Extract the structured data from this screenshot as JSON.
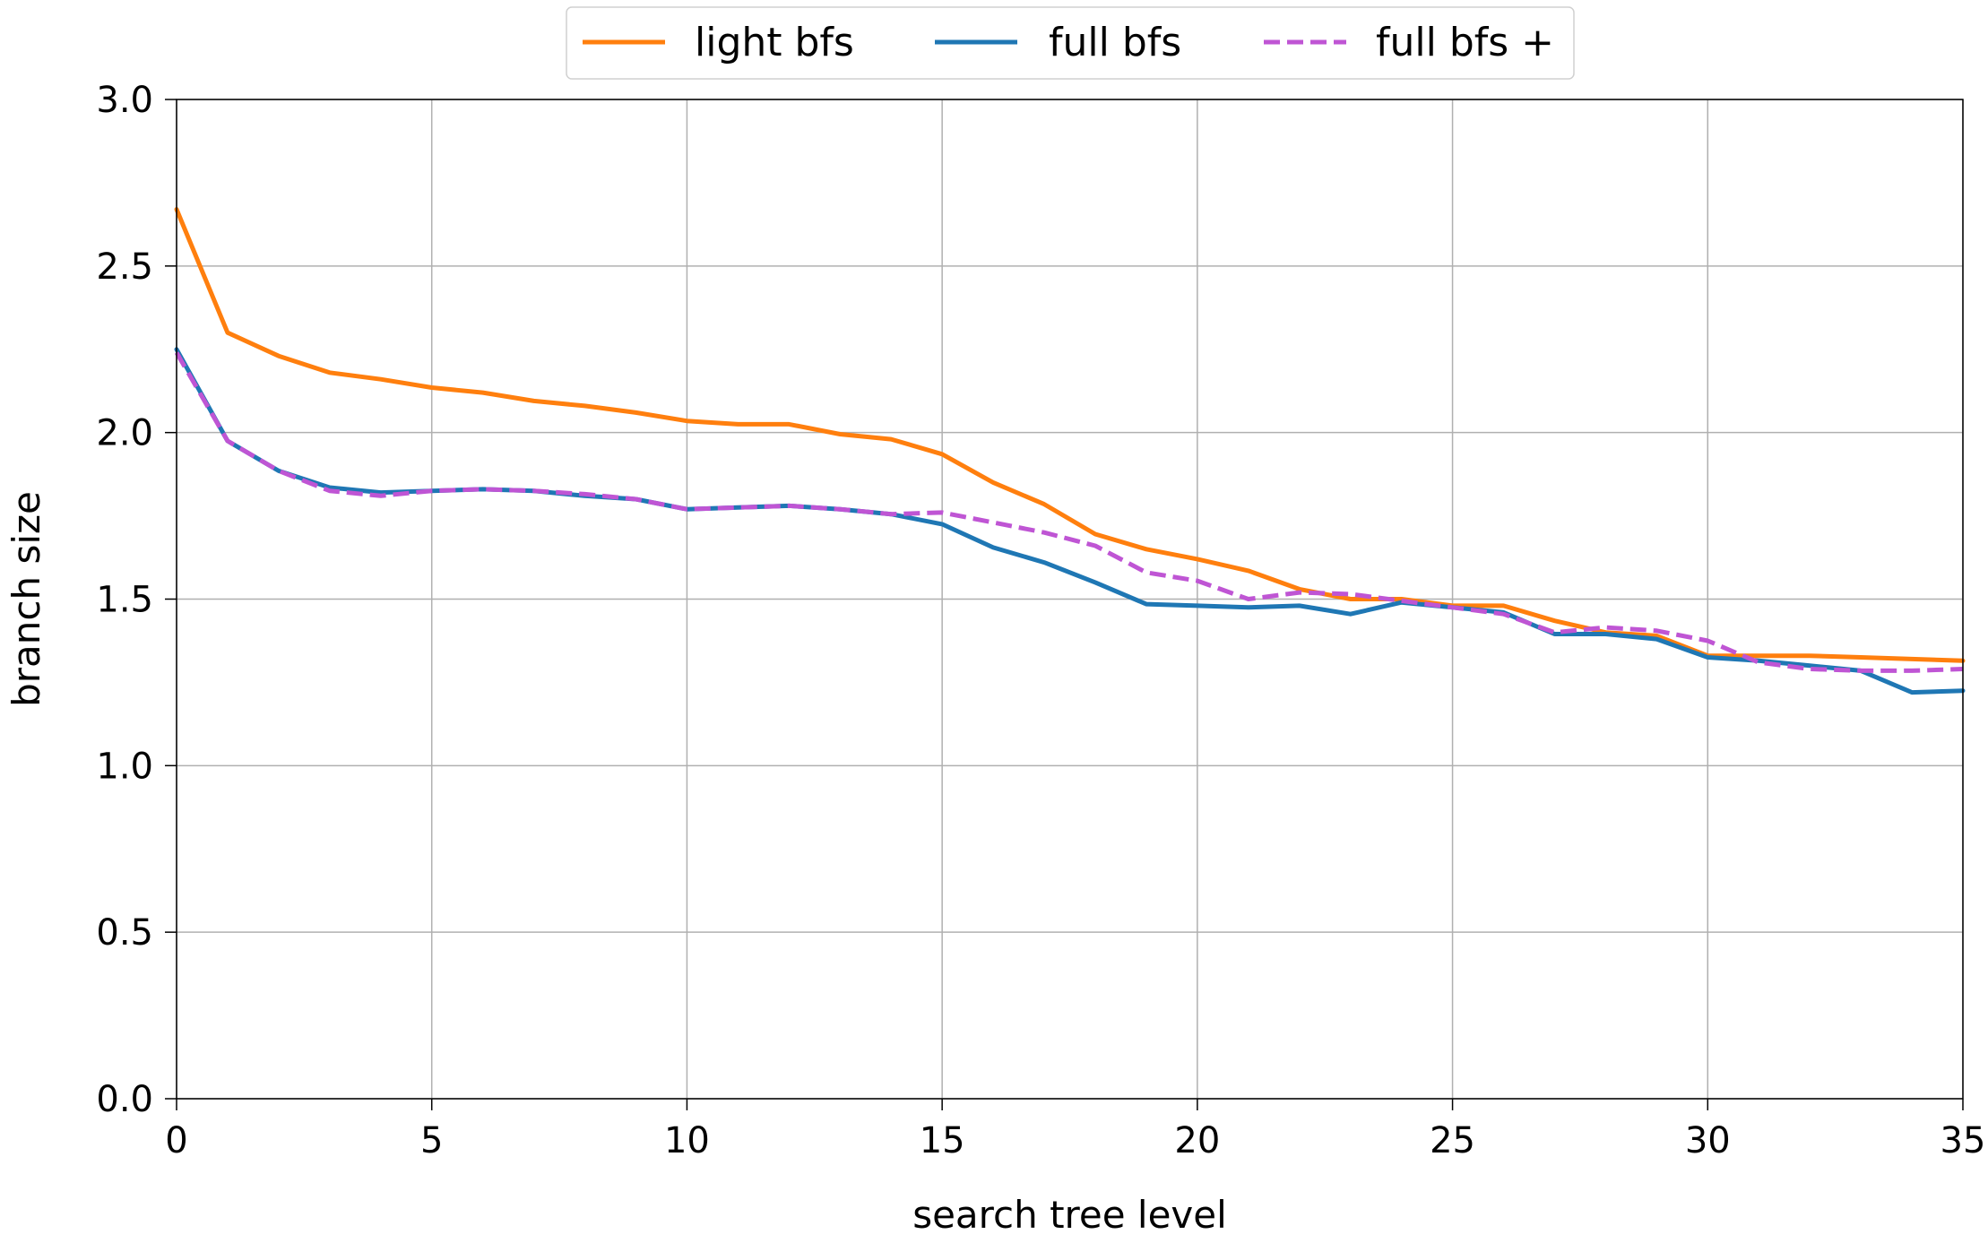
{
  "chart_data": {
    "type": "line",
    "title": "",
    "xlabel": "search tree level",
    "ylabel": "branch size",
    "xlim": [
      0,
      35
    ],
    "ylim": [
      0.0,
      3.0
    ],
    "xticks": [
      "0",
      "5",
      "10",
      "15",
      "20",
      "25",
      "30",
      "35"
    ],
    "yticks": [
      "0.0",
      "0.5",
      "1.0",
      "1.5",
      "2.0",
      "2.5",
      "3.0"
    ],
    "grid": true,
    "legend": "top-center, outside plot, horizontal",
    "x": [
      0,
      1,
      2,
      3,
      4,
      5,
      6,
      7,
      8,
      9,
      10,
      11,
      12,
      13,
      14,
      15,
      16,
      17,
      18,
      19,
      20,
      21,
      22,
      23,
      24,
      25,
      26,
      27,
      28,
      29,
      30,
      31,
      32,
      33,
      34,
      35
    ],
    "series": [
      {
        "name": "light bfs",
        "color": "#ff7f0e",
        "dash": "solid",
        "values": [
          2.67,
          2.3,
          2.23,
          2.18,
          2.16,
          2.135,
          2.12,
          2.095,
          2.08,
          2.06,
          2.035,
          2.025,
          2.025,
          1.995,
          1.98,
          1.935,
          1.85,
          1.785,
          1.695,
          1.65,
          1.62,
          1.585,
          1.53,
          1.5,
          1.5,
          1.48,
          1.48,
          1.435,
          1.4,
          1.39,
          1.33,
          1.33,
          1.33,
          1.325,
          1.32,
          1.315
        ]
      },
      {
        "name": "full bfs",
        "color": "#1f77b4",
        "dash": "solid",
        "values": [
          2.25,
          1.975,
          1.885,
          1.835,
          1.82,
          1.825,
          1.83,
          1.825,
          1.81,
          1.8,
          1.77,
          1.775,
          1.78,
          1.77,
          1.755,
          1.725,
          1.655,
          1.61,
          1.55,
          1.485,
          1.48,
          1.475,
          1.48,
          1.455,
          1.49,
          1.475,
          1.46,
          1.395,
          1.395,
          1.38,
          1.325,
          1.315,
          1.3,
          1.285,
          1.22,
          1.225
        ]
      },
      {
        "name": "full bfs +",
        "color": "#bf55d4",
        "dash": "dashed",
        "values": [
          2.24,
          1.975,
          1.885,
          1.825,
          1.81,
          1.825,
          1.83,
          1.825,
          1.815,
          1.8,
          1.77,
          1.775,
          1.78,
          1.77,
          1.755,
          1.76,
          1.73,
          1.7,
          1.66,
          1.58,
          1.555,
          1.5,
          1.52,
          1.515,
          1.495,
          1.475,
          1.455,
          1.4,
          1.415,
          1.405,
          1.375,
          1.31,
          1.29,
          1.285,
          1.285,
          1.29
        ]
      }
    ]
  }
}
